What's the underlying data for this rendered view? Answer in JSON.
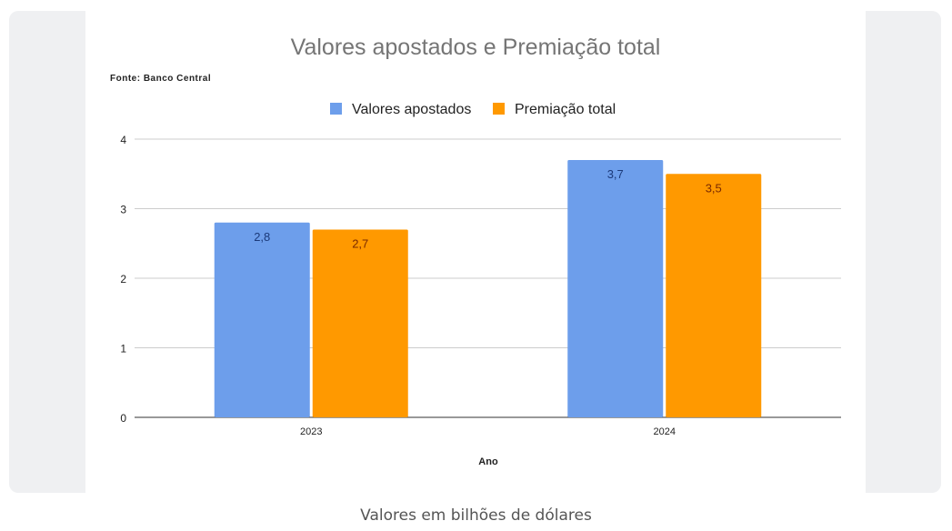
{
  "caption": "Valores em bilhões de dólares",
  "chart_data": {
    "type": "bar",
    "title": "Valores apostados e Premiação total",
    "source": "Fonte: Banco Central",
    "categories": [
      "2023",
      "2024"
    ],
    "series": [
      {
        "name": "Valores apostados",
        "values": [
          2.8,
          3.7
        ],
        "labels": [
          "2,8",
          "3,7"
        ],
        "color": "#6d9eeb",
        "label_color": "#1c3a7a"
      },
      {
        "name": "Premiação total",
        "values": [
          2.7,
          3.5
        ],
        "labels": [
          "2,7",
          "3,5"
        ],
        "color": "#ff9900",
        "label_color": "#7a2a00"
      }
    ],
    "xlabel": "Ano",
    "ylabel": "",
    "ylim": [
      0,
      4
    ],
    "yticks": [
      "0",
      "1",
      "2",
      "3",
      "4"
    ],
    "grid": true,
    "legend": "top"
  }
}
